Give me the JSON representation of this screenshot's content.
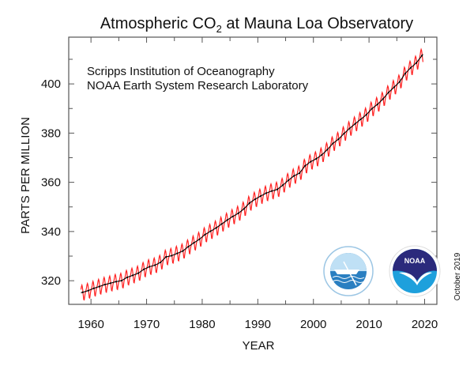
{
  "chart_data": {
    "type": "line",
    "title": "Atmospheric CO",
    "title_subscript": "2",
    "title_suffix": " at Mauna Loa Observatory",
    "annotations": [
      "Scripps Institution of Oceanography",
      "NOAA Earth System Research Laboratory"
    ],
    "date_note": "October 2019",
    "xlabel": "YEAR",
    "ylabel": "PARTS PER MILLION",
    "xlim": [
      1956,
      2022.2
    ],
    "ylim": [
      310.4,
      419
    ],
    "xticks": [
      1960,
      1970,
      1980,
      1990,
      2000,
      2010,
      2020
    ],
    "yticks": [
      320,
      340,
      360,
      380,
      400
    ],
    "grid": false,
    "series": [
      {
        "kind": "seasonally-corrected trend",
        "color": "#000000",
        "x": [
          1958,
          1959,
          1960,
          1961,
          1962,
          1963,
          1964,
          1965,
          1966,
          1967,
          1968,
          1969,
          1970,
          1971,
          1972,
          1973,
          1974,
          1975,
          1976,
          1977,
          1978,
          1979,
          1980,
          1981,
          1982,
          1983,
          1984,
          1985,
          1986,
          1987,
          1988,
          1989,
          1990,
          1991,
          1992,
          1993,
          1994,
          1995,
          1996,
          1997,
          1998,
          1999,
          2000,
          2001,
          2002,
          2003,
          2004,
          2005,
          2006,
          2007,
          2008,
          2009,
          2010,
          2011,
          2012,
          2013,
          2014,
          2015,
          2016,
          2017,
          2018,
          2019
        ],
        "y": [
          315.3,
          315.97,
          316.91,
          317.64,
          318.45,
          318.99,
          319.62,
          320.04,
          321.37,
          322.18,
          323.05,
          324.62,
          325.68,
          326.32,
          327.45,
          329.68,
          330.18,
          331.11,
          332.04,
          333.83,
          335.4,
          336.84,
          338.75,
          340.11,
          341.45,
          343.05,
          344.65,
          346.12,
          347.42,
          349.19,
          351.57,
          353.12,
          354.39,
          355.61,
          356.45,
          357.1,
          358.83,
          360.82,
          362.61,
          363.73,
          366.7,
          368.38,
          369.55,
          371.14,
          373.28,
          375.8,
          377.52,
          379.8,
          381.9,
          383.79,
          385.6,
          387.43,
          389.9,
          391.65,
          393.85,
          396.52,
          398.65,
          400.83,
          404.24,
          406.55,
          408.52,
          411.44
        ]
      },
      {
        "kind": "monthly mean (trend plus seasonal cycle)",
        "color": "#ff2020",
        "seasonal_cycle_by_month": [
          -0.2,
          0.5,
          1.3,
          2.5,
          3.0,
          2.3,
          0.8,
          -1.3,
          -3.1,
          -3.3,
          -2.0,
          -0.8
        ],
        "start": 1958.2,
        "end": 2019.75
      }
    ],
    "logos": [
      "Scripps Institution of Oceanography seal",
      "NOAA logo"
    ],
    "logo_text": "NOAA"
  }
}
